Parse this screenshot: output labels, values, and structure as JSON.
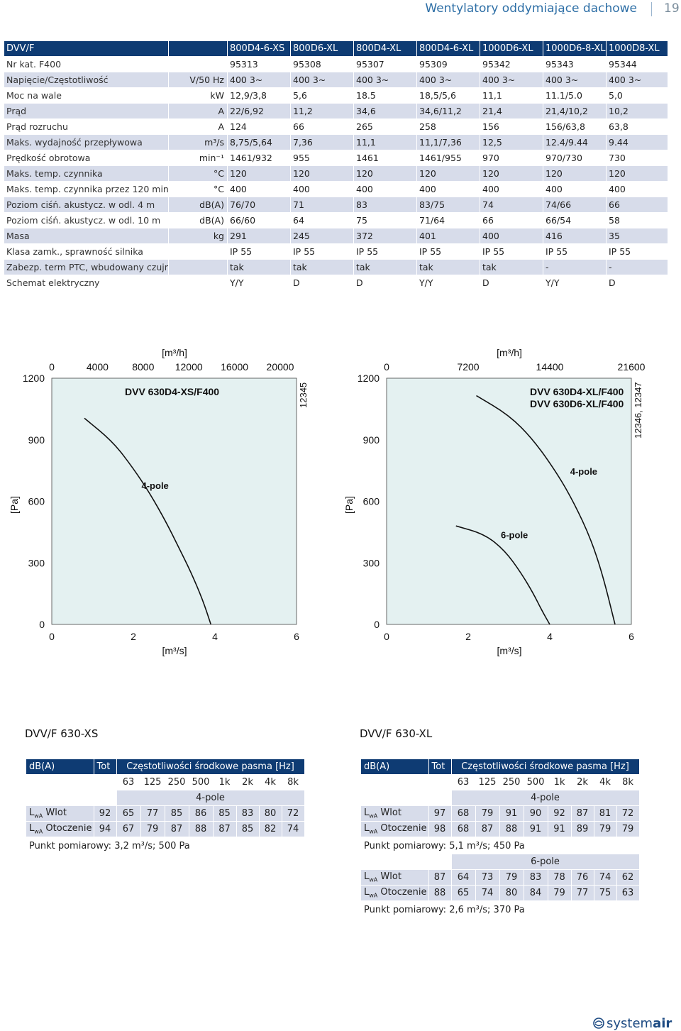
{
  "header": {
    "title": "Wentylatory oddymiające dachowe",
    "page": "19"
  },
  "spec": {
    "head": [
      "DVV/F",
      "",
      "800D4-6-XS",
      "800D6-XL",
      "800D4-XL",
      "800D4-6-XL",
      "1000D6-XL",
      "1000D6-8-XL",
      "1000D8-XL"
    ],
    "rows": [
      {
        "label": "Nr kat. F400",
        "unit": "",
        "values": [
          "95313",
          "95308",
          "95307",
          "95309",
          "95342",
          "95343",
          "95344"
        ]
      },
      {
        "label": "Napięcie/Częstotliwość",
        "unit": "V/50 Hz",
        "values": [
          "400 3~",
          "400 3~",
          "400 3~",
          "400 3~",
          "400 3~",
          "400 3~",
          "400 3~"
        ]
      },
      {
        "label": "Moc na wale",
        "unit": "kW",
        "values": [
          "12,9/3,8",
          "5,6",
          "18.5",
          "18,5/5,6",
          "11,1",
          "11.1/5.0",
          "5,0"
        ]
      },
      {
        "label": "Prąd",
        "unit": "A",
        "values": [
          "22/6,92",
          "11,2",
          "34,6",
          "34,6/11,2",
          "21,4",
          "21,4/10,2",
          "10,2"
        ]
      },
      {
        "label": "Prąd rozruchu",
        "unit": "A",
        "values": [
          "124",
          "66",
          "265",
          "258",
          "156",
          "156/63,8",
          "63,8"
        ]
      },
      {
        "label": "Maks. wydajność przepływowa",
        "unit": "m³/s",
        "values": [
          "8,75/5,64",
          "7,36",
          "11,1",
          "11,1/7,36",
          "12,5",
          "12.4/9.44",
          "9.44"
        ]
      },
      {
        "label": "Prędkość obrotowa",
        "unit": "min⁻¹",
        "values": [
          "1461/932",
          "955",
          "1461",
          "1461/955",
          "970",
          "970/730",
          "730"
        ]
      },
      {
        "label": "Maks. temp. czynnika",
        "unit": "°C",
        "values": [
          "120",
          "120",
          "120",
          "120",
          "120",
          "120",
          "120"
        ]
      },
      {
        "label": "Maks. temp. czynnika przez 120 min",
        "unit": "°C",
        "values": [
          "400",
          "400",
          "400",
          "400",
          "400",
          "400",
          "400"
        ]
      },
      {
        "label": "Poziom ciśń. akustycz. w odl. 4 m",
        "unit": "dB(A)",
        "values": [
          "76/70",
          "71",
          "83",
          "83/75",
          "74",
          "74/66",
          "66"
        ]
      },
      {
        "label": "Poziom ciśń. akustycz. w odl. 10 m",
        "unit": "dB(A)",
        "values": [
          "66/60",
          "64",
          "75",
          "71/64",
          "66",
          "66/54",
          "58"
        ]
      },
      {
        "label": "Masa",
        "unit": "kg",
        "values": [
          "291",
          "245",
          "372",
          "401",
          "400",
          "416",
          "35"
        ]
      },
      {
        "label": "Klasa zamk., sprawność silnika",
        "unit": "",
        "values": [
          "IP 55",
          "IP 55",
          "IP 55",
          "IP 55",
          "IP 55",
          "IP 55",
          "IP 55"
        ]
      },
      {
        "label": "Zabezp. term PTC, wbudowany czujnik",
        "unit": "",
        "values": [
          "tak",
          "tak",
          "tak",
          "tak",
          "tak",
          "-",
          "-"
        ]
      },
      {
        "label": "Schemat elektryczny",
        "unit": "",
        "values": [
          "Y/Y",
          "D",
          "D",
          "Y/Y",
          "D",
          "Y/Y",
          "D"
        ]
      }
    ]
  },
  "chart_data": [
    {
      "type": "line",
      "title": "DVV 630D4-XS/F400",
      "side_label": "12345",
      "xlabel": "[m³/s]",
      "x2label": "[m³/h]",
      "ylabel": "[Pa]",
      "xlim": [
        0,
        6
      ],
      "ylim": [
        0,
        1200
      ],
      "x_ticks": [
        "0",
        "2",
        "4",
        "6"
      ],
      "x2_ticks": [
        "0",
        "4000",
        "8000",
        "12000",
        "16000",
        "20000"
      ],
      "y_ticks": [
        "0",
        "300",
        "600",
        "900",
        "1200"
      ],
      "grid": false,
      "series": [
        {
          "name": "4-pole",
          "x": [
            0.8,
            1.5,
            2.0,
            2.4,
            2.8,
            3.1,
            3.4,
            3.7,
            3.9
          ],
          "y": [
            1005,
            890,
            760,
            640,
            500,
            380,
            260,
            120,
            0
          ]
        }
      ]
    },
    {
      "type": "line",
      "title": "DVV 630D4-XL/F400",
      "title2": "DVV 630D6-XL/F400",
      "side_label": "12346, 12347",
      "xlabel": "[m³/s]",
      "x2label": "[m³/h]",
      "ylabel": "[Pa]",
      "xlim": [
        0,
        6
      ],
      "ylim": [
        0,
        1200
      ],
      "x_ticks": [
        "0",
        "2",
        "4",
        "6"
      ],
      "x2_ticks": [
        "0",
        "7200",
        "14400",
        "21600"
      ],
      "y_ticks": [
        "0",
        "300",
        "600",
        "900",
        "1200"
      ],
      "grid": false,
      "series": [
        {
          "name": "4-pole",
          "x": [
            2.2,
            3.0,
            3.6,
            4.2,
            4.6,
            5.0,
            5.3,
            5.6
          ],
          "y": [
            1115,
            1020,
            900,
            730,
            590,
            420,
            240,
            0
          ]
        },
        {
          "name": "6-pole",
          "x": [
            1.7,
            2.4,
            2.9,
            3.3,
            3.6,
            3.8,
            4.0
          ],
          "y": [
            480,
            440,
            360,
            250,
            150,
            70,
            0
          ]
        }
      ]
    }
  ],
  "sound_xs": {
    "title": "DVV/F 630-XS",
    "head": [
      "dB(A)",
      "Tot",
      "Częstotliwości środkowe pasma [Hz]"
    ],
    "freqs": [
      "63",
      "125",
      "250",
      "500",
      "1k",
      "2k",
      "4k",
      "8k"
    ],
    "groups": [
      {
        "name": "4-pole",
        "rows": [
          {
            "label": "Wlot",
            "tot": "92",
            "values": [
              "65",
              "77",
              "85",
              "86",
              "85",
              "83",
              "80",
              "72"
            ]
          },
          {
            "label": "Otoczenie",
            "tot": "94",
            "values": [
              "67",
              "79",
              "87",
              "88",
              "87",
              "85",
              "82",
              "74"
            ]
          }
        ],
        "note": "Punkt pomiarowy: 3,2 m³/s; 500 Pa"
      }
    ]
  },
  "sound_xl": {
    "title": "DVV/F 630-XL",
    "head": [
      "dB(A)",
      "Tot",
      "Częstotliwości środkowe pasma [Hz]"
    ],
    "freqs": [
      "63",
      "125",
      "250",
      "500",
      "1k",
      "2k",
      "4k",
      "8k"
    ],
    "groups": [
      {
        "name": "4-pole",
        "rows": [
          {
            "label": "Wlot",
            "tot": "97",
            "values": [
              "68",
              "79",
              "91",
              "90",
              "92",
              "87",
              "81",
              "72"
            ]
          },
          {
            "label": "Otoczenie",
            "tot": "98",
            "values": [
              "68",
              "87",
              "88",
              "91",
              "91",
              "89",
              "79",
              "79"
            ]
          }
        ],
        "note": "Punkt pomiarowy: 5,1 m³/s; 450 Pa"
      },
      {
        "name": "6-pole",
        "rows": [
          {
            "label": "Wlot",
            "tot": "87",
            "values": [
              "64",
              "73",
              "79",
              "83",
              "78",
              "76",
              "74",
              "62"
            ]
          },
          {
            "label": "Otoczenie",
            "tot": "88",
            "values": [
              "65",
              "74",
              "80",
              "84",
              "79",
              "77",
              "75",
              "63"
            ]
          }
        ],
        "note": "Punkt pomiarowy: 2,6 m³/s; 370 Pa"
      }
    ]
  },
  "lwa_prefix": "L",
  "lwa_sub": "wA",
  "logo": {
    "text_a": "system",
    "text_b": "air"
  },
  "colors": {
    "header_bg": "#0e3b73",
    "row_alt": "#d7dcea",
    "plot_bg": "#e4f1f1",
    "accent": "#2e6fa6"
  }
}
